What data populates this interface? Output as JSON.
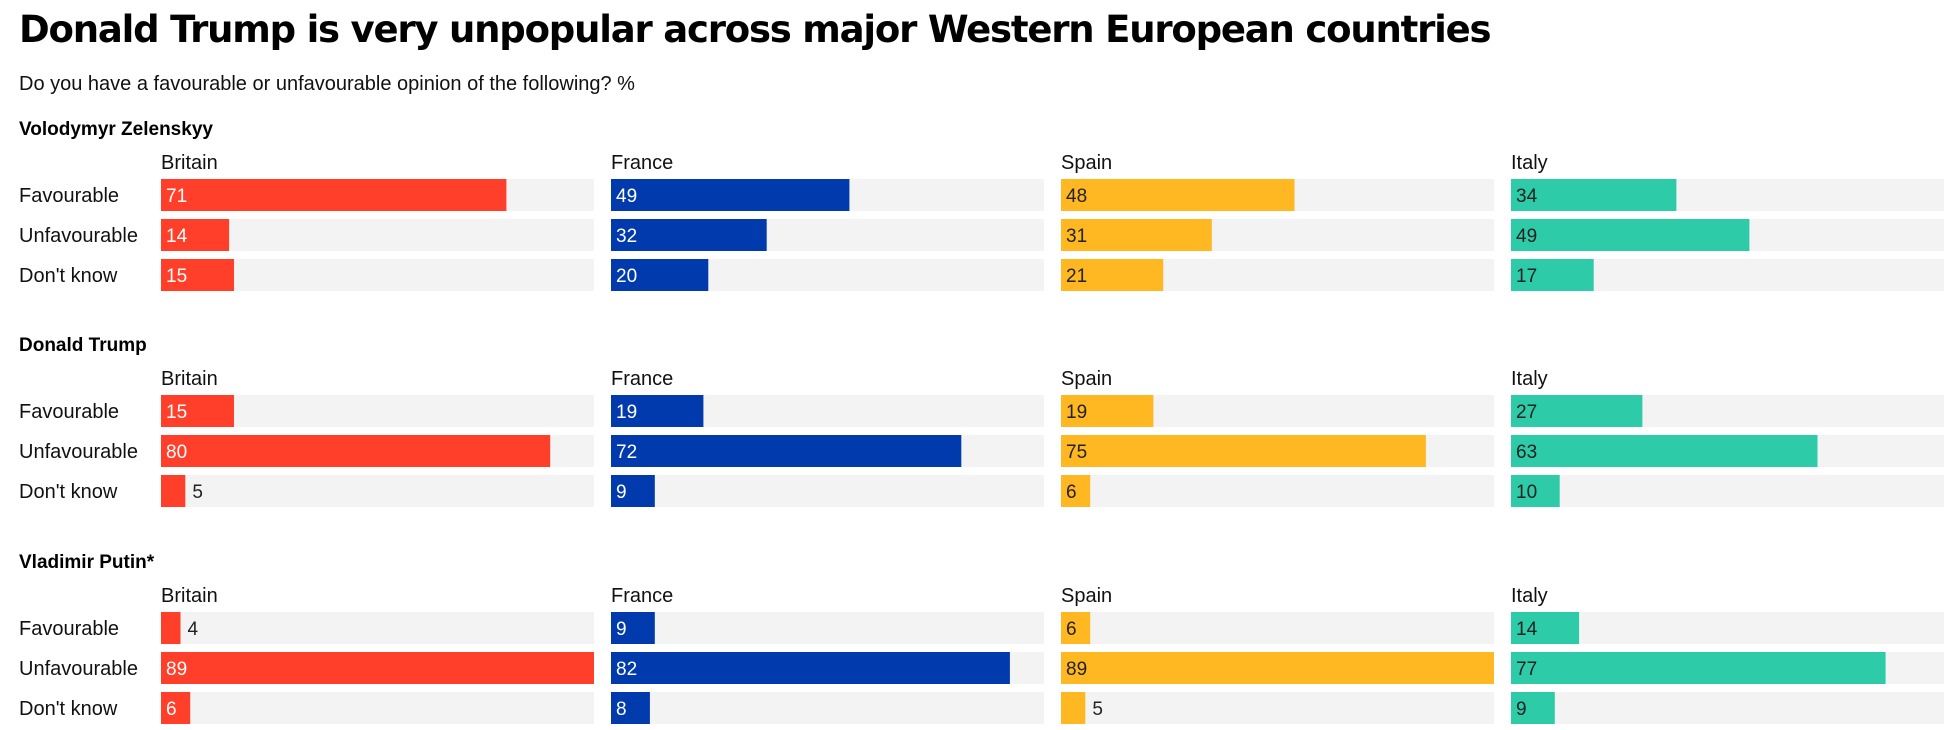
{
  "title": "Donald Trump is very unpopular across major Western European countries",
  "subtitle": "Do you have a favourable or unfavourable opinion of the following? %",
  "chart_data": {
    "type": "bar",
    "orientation": "horizontal",
    "title": "Donald Trump is very unpopular across major Western European countries",
    "subtitle": "Do you have a favourable or unfavourable opinion of the following? %",
    "xlim": [
      0,
      89
    ],
    "unit": "%",
    "countries": [
      "Britain",
      "France",
      "Spain",
      "Italy"
    ],
    "categories": [
      "Favourable",
      "Unfavourable",
      "Don't know"
    ],
    "colors": {
      "Britain": "#ff3f2a",
      "France": "#003aad",
      "Spain": "#ffb722",
      "Italy": "#2ecba8"
    },
    "value_text_colors": {
      "Britain": "#ffffff",
      "France": "#ffffff",
      "Spain": "#222222",
      "Italy": "#222222"
    },
    "background_track": "#f3f3f3",
    "sections": [
      {
        "name": "Volodymyr Zelenskyy",
        "series": [
          {
            "name": "Britain",
            "values": [
              71,
              14,
              15
            ]
          },
          {
            "name": "France",
            "values": [
              49,
              32,
              20
            ]
          },
          {
            "name": "Spain",
            "values": [
              48,
              31,
              21
            ]
          },
          {
            "name": "Italy",
            "values": [
              34,
              49,
              17
            ]
          }
        ]
      },
      {
        "name": "Donald Trump",
        "series": [
          {
            "name": "Britain",
            "values": [
              15,
              80,
              5
            ]
          },
          {
            "name": "France",
            "values": [
              19,
              72,
              9
            ]
          },
          {
            "name": "Spain",
            "values": [
              19,
              75,
              6
            ]
          },
          {
            "name": "Italy",
            "values": [
              27,
              63,
              10
            ]
          }
        ]
      },
      {
        "name": "Vladimir Putin*",
        "series": [
          {
            "name": "Britain",
            "values": [
              4,
              89,
              6
            ]
          },
          {
            "name": "France",
            "values": [
              9,
              82,
              8
            ]
          },
          {
            "name": "Spain",
            "values": [
              6,
              89,
              5
            ]
          },
          {
            "name": "Italy",
            "values": [
              14,
              77,
              9
            ]
          }
        ]
      }
    ]
  }
}
